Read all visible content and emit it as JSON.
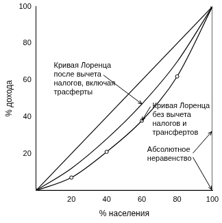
{
  "chart_data": {
    "type": "line",
    "x_label": "% населения",
    "y_label": "% дохода",
    "xlim": [
      0,
      100
    ],
    "ylim": [
      0,
      100
    ],
    "xticks": [
      20,
      40,
      60,
      80,
      100
    ],
    "yticks": [
      20,
      40,
      60,
      80,
      100
    ],
    "grid": false,
    "series": [
      {
        "color": "#000000",
        "marker": "none",
        "line_style": "solid",
        "x": [
          0,
          100
        ],
        "values": [
          0,
          100
        ]
      },
      {
        "name": "Кривая Лоренца после вычета налогов, включая трасферты",
        "color": "#000000",
        "marker": "none",
        "line_style": "solid",
        "x": [
          0,
          20,
          40,
          60,
          80,
          100
        ],
        "values": [
          0,
          12,
          28,
          47,
          70,
          100
        ]
      },
      {
        "name": "Кривая Лоренца без вычета налогов и трансфертов",
        "color": "#000000",
        "marker": "circle",
        "line_style": "solid",
        "x": [
          0,
          20,
          40,
          60,
          80,
          100
        ],
        "values": [
          0,
          7,
          21,
          38,
          62,
          100
        ]
      },
      {
        "name": "Абсолютное неравенство",
        "color": "#000000",
        "marker": "none",
        "line_style": "solid",
        "x": [
          0,
          100,
          100
        ],
        "values": [
          0,
          0,
          100
        ]
      }
    ]
  }
}
